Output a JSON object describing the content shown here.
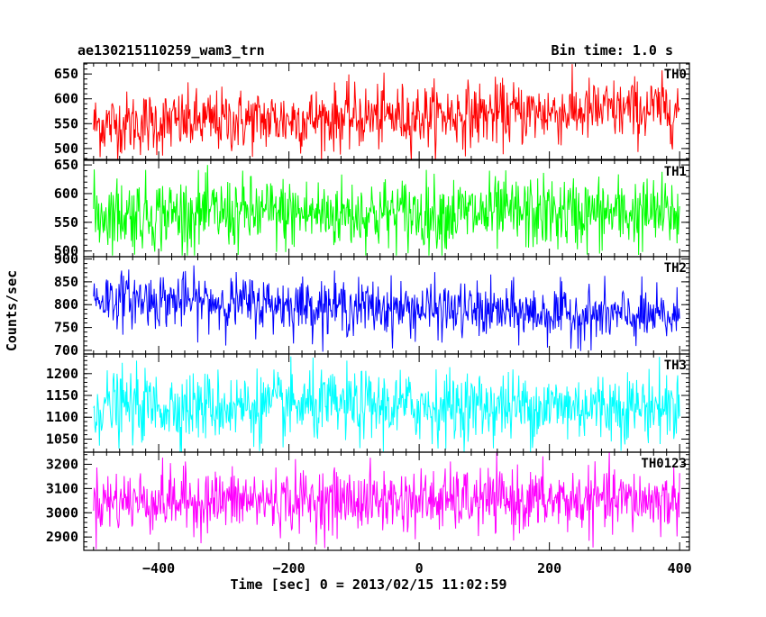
{
  "header": {
    "left_title": "ae130215110259_wam3_trn",
    "right_title": "Bin time: 1.0 s"
  },
  "chart_data": {
    "type": "line",
    "title": "ae130215110259_wam3_trn",
    "subtitle": "Bin time: 1.0 s",
    "xlabel": "Time [sec] 0 = 2013/02/15 11:02:59",
    "ylabel": "Counts/sec",
    "xlim": [
      -515,
      415
    ],
    "x_range_data": [
      -500,
      400
    ],
    "bin_time": 1.0,
    "x_ticks": [
      -400,
      -200,
      0,
      200,
      400
    ],
    "x_tick_labels": [
      "−400",
      "−200",
      "0",
      "200",
      "400"
    ],
    "grid": false,
    "series": [
      {
        "name": "TH0",
        "color": "#ff0000",
        "ylim": [
          478,
          672
        ],
        "y_ticks": [
          500,
          550,
          600,
          650
        ],
        "mean_start": 548,
        "mean_end": 580,
        "amplitude": 32,
        "min": 475,
        "max": 670
      },
      {
        "name": "TH1",
        "color": "#00ff00",
        "ylim": [
          490,
          658
        ],
        "y_ticks": [
          500,
          550,
          600,
          650
        ],
        "mean_start": 565,
        "mean_end": 565,
        "amplitude": 32,
        "min": 492,
        "max": 650
      },
      {
        "name": "TH2",
        "color": "#0000ff",
        "ylim": [
          692,
          905
        ],
        "y_ticks": [
          700,
          750,
          800,
          850,
          900
        ],
        "mean_start": 815,
        "mean_end": 770,
        "amplitude": 30,
        "min": 697,
        "max": 905
      },
      {
        "name": "TH3",
        "color": "#00ffff",
        "ylim": [
          1020,
          1245
        ],
        "y_ticks": [
          1050,
          1100,
          1150,
          1200
        ],
        "mean_start": 1125,
        "mean_end": 1125,
        "amplitude": 40,
        "min": 1020,
        "max": 1245
      },
      {
        "name": "TH0123",
        "color": "#ff00ff",
        "ylim": [
          2845,
          3250
        ],
        "y_ticks": [
          2900,
          3000,
          3100,
          3200
        ],
        "mean_start": 3050,
        "mean_end": 3050,
        "amplitude": 65,
        "min": 2850,
        "max": 3250
      }
    ]
  }
}
